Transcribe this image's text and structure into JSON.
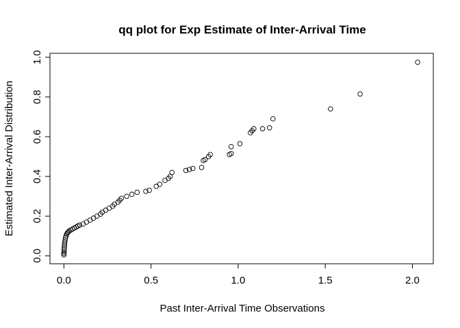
{
  "chart_data": {
    "type": "scatter",
    "title": "qq plot for Exp Estimate of Inter-Arrival Time",
    "xlabel": "Past Inter-Arrival Time Observations",
    "ylabel": "Estimated Inter-Arrival Distribution",
    "xlim": [
      -0.08,
      2.12
    ],
    "ylim": [
      -0.04,
      1.02
    ],
    "xticks": [
      0.0,
      0.5,
      1.0,
      1.5,
      2.0
    ],
    "xtick_labels": [
      "0.0",
      "0.5",
      "1.0",
      "1.5",
      "2.0"
    ],
    "yticks": [
      0.0,
      0.2,
      0.4,
      0.6,
      0.8,
      1.0
    ],
    "ytick_labels": [
      "0.0",
      "0.2",
      "0.4",
      "0.6",
      "0.8",
      "1.0"
    ],
    "grid": false,
    "marker": "open-circle",
    "points": [
      [
        0.0,
        0.005
      ],
      [
        0.0,
        0.012
      ],
      [
        0.001,
        0.02
      ],
      [
        0.001,
        0.03
      ],
      [
        0.002,
        0.04
      ],
      [
        0.003,
        0.05
      ],
      [
        0.004,
        0.06
      ],
      [
        0.005,
        0.07
      ],
      [
        0.007,
        0.08
      ],
      [
        0.009,
        0.09
      ],
      [
        0.012,
        0.1
      ],
      [
        0.016,
        0.11
      ],
      [
        0.02,
        0.115
      ],
      [
        0.025,
        0.12
      ],
      [
        0.03,
        0.125
      ],
      [
        0.04,
        0.13
      ],
      [
        0.05,
        0.135
      ],
      [
        0.06,
        0.14
      ],
      [
        0.07,
        0.145
      ],
      [
        0.08,
        0.15
      ],
      [
        0.09,
        0.155
      ],
      [
        0.11,
        0.16
      ],
      [
        0.13,
        0.17
      ],
      [
        0.15,
        0.18
      ],
      [
        0.17,
        0.19
      ],
      [
        0.19,
        0.2
      ],
      [
        0.21,
        0.21
      ],
      [
        0.22,
        0.22
      ],
      [
        0.24,
        0.23
      ],
      [
        0.26,
        0.24
      ],
      [
        0.28,
        0.25
      ],
      [
        0.29,
        0.26
      ],
      [
        0.31,
        0.27
      ],
      [
        0.32,
        0.28
      ],
      [
        0.33,
        0.29
      ],
      [
        0.36,
        0.3
      ],
      [
        0.39,
        0.31
      ],
      [
        0.42,
        0.32
      ],
      [
        0.47,
        0.325
      ],
      [
        0.49,
        0.33
      ],
      [
        0.53,
        0.35
      ],
      [
        0.55,
        0.36
      ],
      [
        0.58,
        0.38
      ],
      [
        0.6,
        0.39
      ],
      [
        0.61,
        0.4
      ],
      [
        0.62,
        0.42
      ],
      [
        0.7,
        0.43
      ],
      [
        0.72,
        0.435
      ],
      [
        0.74,
        0.44
      ],
      [
        0.79,
        0.445
      ],
      [
        0.8,
        0.48
      ],
      [
        0.81,
        0.485
      ],
      [
        0.83,
        0.5
      ],
      [
        0.84,
        0.51
      ],
      [
        0.95,
        0.51
      ],
      [
        0.96,
        0.515
      ],
      [
        0.96,
        0.55
      ],
      [
        1.01,
        0.565
      ],
      [
        1.07,
        0.62
      ],
      [
        1.08,
        0.63
      ],
      [
        1.09,
        0.64
      ],
      [
        1.14,
        0.64
      ],
      [
        1.18,
        0.645
      ],
      [
        1.2,
        0.69
      ],
      [
        1.53,
        0.74
      ],
      [
        1.7,
        0.815
      ],
      [
        2.03,
        0.975
      ]
    ]
  }
}
